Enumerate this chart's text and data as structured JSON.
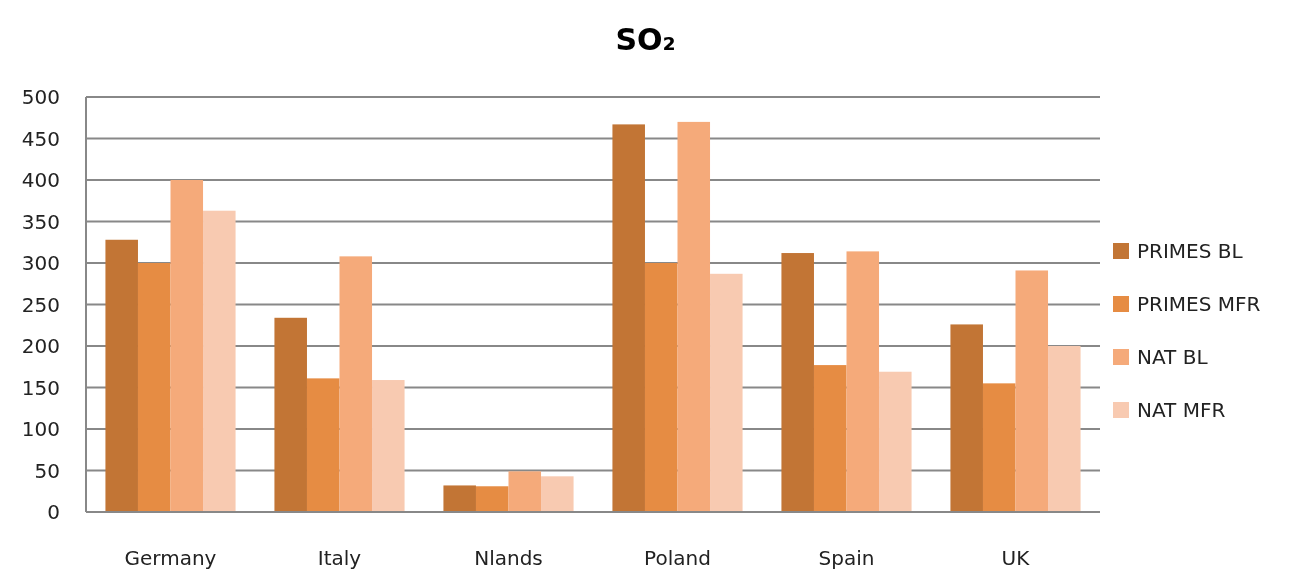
{
  "chart_data": {
    "type": "bar",
    "title": "SO₂",
    "categories": [
      "Germany",
      "Italy",
      "Nlands",
      "Poland",
      "Spain",
      "UK"
    ],
    "series": [
      {
        "name": "PRIMES BL",
        "color": "#c27535",
        "values": [
          328,
          234,
          32,
          467,
          312,
          226
        ]
      },
      {
        "name": "PRIMES MFR",
        "color": "#e68c43",
        "values": [
          300,
          161,
          31,
          300,
          177,
          155
        ]
      },
      {
        "name": "NAT BL",
        "color": "#f5aa7a",
        "values": [
          400,
          308,
          49,
          470,
          314,
          291
        ]
      },
      {
        "name": "NAT MFR",
        "color": "#f8cab1",
        "values": [
          363,
          159,
          43,
          287,
          169,
          200
        ]
      }
    ],
    "ylim": [
      0,
      500
    ],
    "yticks": [
      0,
      50,
      100,
      150,
      200,
      250,
      300,
      350,
      400,
      450,
      500
    ],
    "grid": "y",
    "legend": "right"
  }
}
